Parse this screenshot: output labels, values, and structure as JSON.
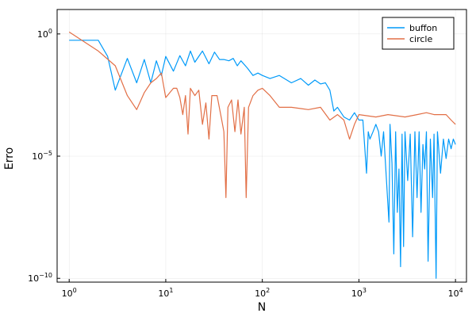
{
  "chart_data": {
    "type": "line",
    "title": "",
    "xlabel": "N",
    "ylabel": "Erro",
    "xscale": "log",
    "yscale": "log",
    "xlim": [
      0.75,
      13000
    ],
    "ylim": [
      7e-11,
      10
    ],
    "grid": true,
    "legend_position": "top-right",
    "x_ticks": [
      {
        "value": 1,
        "base": "10",
        "exp": "0"
      },
      {
        "value": 10,
        "base": "10",
        "exp": "1"
      },
      {
        "value": 100,
        "base": "10",
        "exp": "2"
      },
      {
        "value": 1000,
        "base": "10",
        "exp": "3"
      },
      {
        "value": 10000,
        "base": "10",
        "exp": "4"
      }
    ],
    "y_ticks": [
      {
        "value": 1,
        "base": "10",
        "exp": "0"
      },
      {
        "value": 1e-05,
        "base": "10",
        "exp": "−5"
      },
      {
        "value": 1e-10,
        "base": "10",
        "exp": "−10"
      }
    ],
    "series": [
      {
        "name": "buffon",
        "color": "#009af9",
        "points": [
          [
            1,
            0.55
          ],
          [
            2,
            0.55
          ],
          [
            2.5,
            0.12
          ],
          [
            3,
            0.005
          ],
          [
            4,
            0.1
          ],
          [
            5,
            0.01
          ],
          [
            6,
            0.09
          ],
          [
            7,
            0.01
          ],
          [
            8,
            0.08
          ],
          [
            9,
            0.02
          ],
          [
            10,
            0.12
          ],
          [
            12,
            0.03
          ],
          [
            14,
            0.13
          ],
          [
            16,
            0.05
          ],
          [
            18,
            0.2
          ],
          [
            20,
            0.07
          ],
          [
            24,
            0.2
          ],
          [
            28,
            0.06
          ],
          [
            32,
            0.18
          ],
          [
            36,
            0.09
          ],
          [
            40,
            0.09
          ],
          [
            45,
            0.08
          ],
          [
            50,
            0.1
          ],
          [
            55,
            0.05
          ],
          [
            60,
            0.08
          ],
          [
            70,
            0.04
          ],
          [
            80,
            0.02
          ],
          [
            90,
            0.025
          ],
          [
            100,
            0.02
          ],
          [
            120,
            0.015
          ],
          [
            150,
            0.02
          ],
          [
            200,
            0.01
          ],
          [
            250,
            0.015
          ],
          [
            300,
            0.008
          ],
          [
            350,
            0.013
          ],
          [
            400,
            0.009
          ],
          [
            450,
            0.01
          ],
          [
            500,
            0.005
          ],
          [
            550,
            0.0007
          ],
          [
            600,
            0.001
          ],
          [
            700,
            0.0004
          ],
          [
            800,
            0.0003
          ],
          [
            900,
            0.0006
          ],
          [
            1000,
            0.0003
          ],
          [
            1100,
            0.0003
          ],
          [
            1200,
            2e-06
          ],
          [
            1250,
            0.0001
          ],
          [
            1300,
            5e-05
          ],
          [
            1400,
            0.0001
          ],
          [
            1500,
            0.0002
          ],
          [
            1600,
            0.0001
          ],
          [
            1700,
            1e-05
          ],
          [
            1800,
            0.0001
          ],
          [
            1900,
            3e-06
          ],
          [
            2000,
            1e-07
          ],
          [
            2050,
            2e-08
          ],
          [
            2100,
            0.0002
          ],
          [
            2200,
            5e-06
          ],
          [
            2300,
            1e-09
          ],
          [
            2400,
            0.0001
          ],
          [
            2500,
            5e-08
          ],
          [
            2600,
            3e-06
          ],
          [
            2700,
            3e-10
          ],
          [
            2800,
            8e-05
          ],
          [
            2900,
            2e-09
          ],
          [
            3000,
            0.0001
          ],
          [
            3200,
            1e-06
          ],
          [
            3400,
            8e-05
          ],
          [
            3600,
            5e-09
          ],
          [
            3800,
            0.0001
          ],
          [
            4000,
            2e-07
          ],
          [
            4200,
            0.0001
          ],
          [
            4400,
            5e-08
          ],
          [
            4600,
            3e-05
          ],
          [
            4800,
            3e-06
          ],
          [
            5000,
            0.0001
          ],
          [
            5200,
            5e-10
          ],
          [
            5500,
            5e-05
          ],
          [
            5800,
            2e-07
          ],
          [
            6000,
            8e-05
          ],
          [
            6300,
            1e-10
          ],
          [
            6500,
            0.0001
          ],
          [
            7000,
            2e-06
          ],
          [
            7500,
            5e-05
          ],
          [
            8000,
            8e-06
          ],
          [
            8500,
            5e-05
          ],
          [
            9000,
            2e-05
          ],
          [
            9500,
            5e-05
          ],
          [
            10000,
            3e-05
          ]
        ]
      },
      {
        "name": "circle",
        "color": "#e26f46",
        "points": [
          [
            1,
            1.2
          ],
          [
            2,
            0.2
          ],
          [
            3,
            0.05
          ],
          [
            4,
            0.003
          ],
          [
            5,
            0.0008
          ],
          [
            6,
            0.004
          ],
          [
            7,
            0.01
          ],
          [
            8,
            0.015
          ],
          [
            9,
            0.025
          ],
          [
            10,
            0.0025
          ],
          [
            12,
            0.006
          ],
          [
            13,
            0.006
          ],
          [
            14,
            0.0025
          ],
          [
            15,
            0.0005
          ],
          [
            16,
            0.003
          ],
          [
            17,
            8e-05
          ],
          [
            18,
            0.006
          ],
          [
            20,
            0.003
          ],
          [
            22,
            0.005
          ],
          [
            24,
            0.0002
          ],
          [
            26,
            0.0015
          ],
          [
            28,
            5e-05
          ],
          [
            30,
            0.003
          ],
          [
            34,
            0.003
          ],
          [
            38,
            0.0003
          ],
          [
            40,
            0.0001
          ],
          [
            42,
            2e-07
          ],
          [
            44,
            0.001
          ],
          [
            48,
            0.002
          ],
          [
            52,
            0.0001
          ],
          [
            56,
            0.002
          ],
          [
            60,
            8e-05
          ],
          [
            65,
            0.001
          ],
          [
            68,
            2e-07
          ],
          [
            72,
            0.001
          ],
          [
            80,
            0.003
          ],
          [
            90,
            0.005
          ],
          [
            100,
            0.006
          ],
          [
            120,
            0.003
          ],
          [
            150,
            0.001
          ],
          [
            200,
            0.001
          ],
          [
            300,
            0.0008
          ],
          [
            400,
            0.001
          ],
          [
            500,
            0.0003
          ],
          [
            600,
            0.0005
          ],
          [
            700,
            0.0003
          ],
          [
            800,
            5e-05
          ],
          [
            900,
            0.0002
          ],
          [
            1000,
            0.0005
          ],
          [
            1500,
            0.0004
          ],
          [
            2000,
            0.0005
          ],
          [
            3000,
            0.0004
          ],
          [
            4000,
            0.0005
          ],
          [
            5000,
            0.0006
          ],
          [
            6000,
            0.0005
          ],
          [
            7000,
            0.0005
          ],
          [
            8000,
            0.0005
          ],
          [
            9000,
            0.0003
          ],
          [
            10000,
            0.0002
          ]
        ]
      }
    ]
  }
}
